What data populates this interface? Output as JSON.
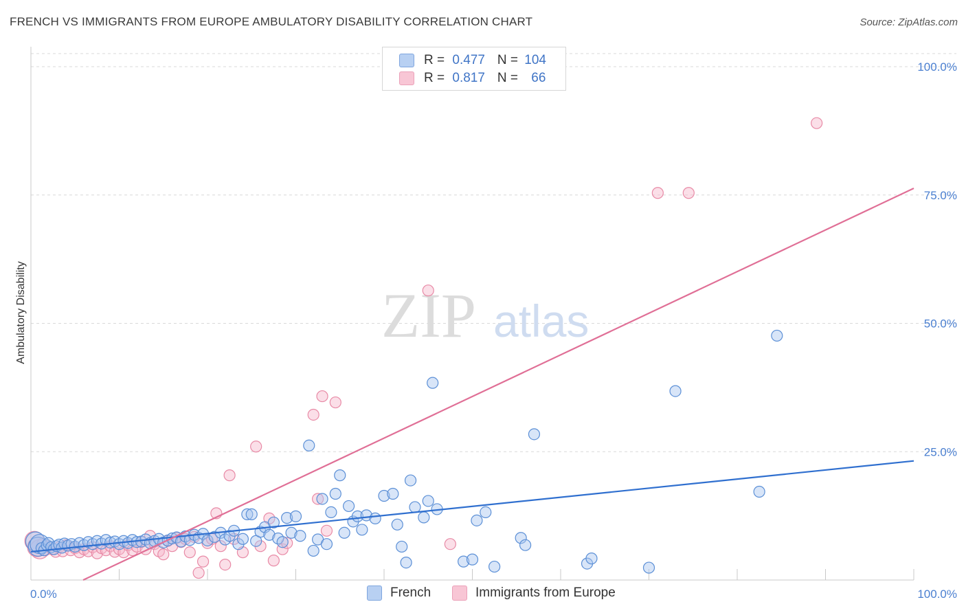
{
  "title": "FRENCH VS IMMIGRANTS FROM EUROPE AMBULATORY DISABILITY CORRELATION CHART",
  "source": "Source: ZipAtlas.com",
  "watermark": {
    "zip": "ZIP",
    "atlas": "atlas"
  },
  "colors": {
    "blue_fill": "#a9c6ef",
    "blue_stroke": "#5b8fd6",
    "blue_line": "#2f6fcf",
    "pink_fill": "#f6b9cb",
    "pink_stroke": "#e88aa6",
    "pink_line": "#e06f96",
    "tick_color": "#4a7fd0",
    "grid": "#d9d9d9"
  },
  "legend": {
    "rows": [
      {
        "r_label": "R = ",
        "r_value": "0.477",
        "n_label": "N = ",
        "n_value": "104"
      },
      {
        "r_label": "R = ",
        "r_value": "0.817",
        "n_label": "N = ",
        "n_value": "66"
      }
    ]
  },
  "bottom_legend": [
    "French",
    "Immigrants from Europe"
  ],
  "chart_data": {
    "type": "scatter",
    "ylabel": "Ambulatory Disability",
    "xlim": [
      0,
      100
    ],
    "ylim": [
      0,
      100
    ],
    "x_tick_labels": [
      "0.0%",
      "100.0%"
    ],
    "y_tick_values": [
      25,
      50,
      75,
      100
    ],
    "y_tick_labels": [
      "25.0%",
      "50.0%",
      "75.0%",
      "100.0%"
    ],
    "legend_position": "top-center",
    "grid": true,
    "series": [
      {
        "name": "French",
        "trend": {
          "x": [
            0,
            100
          ],
          "y": [
            5.5,
            23.2
          ]
        },
        "points": [
          [
            0.5,
            7.5
          ],
          [
            0.8,
            6.5
          ],
          [
            1.0,
            7.0
          ],
          [
            1.2,
            6.2
          ],
          [
            1.5,
            5.8
          ],
          [
            1.8,
            6.8
          ],
          [
            2.0,
            7.2
          ],
          [
            2.3,
            6.4
          ],
          [
            2.6,
            6.0
          ],
          [
            2.9,
            6.6
          ],
          [
            3.2,
            6.9
          ],
          [
            3.5,
            6.3
          ],
          [
            3.8,
            7.1
          ],
          [
            4.2,
            6.7
          ],
          [
            4.6,
            7.0
          ],
          [
            5.0,
            6.5
          ],
          [
            5.5,
            7.2
          ],
          [
            6.0,
            6.8
          ],
          [
            6.5,
            7.4
          ],
          [
            7.0,
            7.0
          ],
          [
            7.5,
            7.6
          ],
          [
            8.0,
            7.1
          ],
          [
            8.5,
            7.8
          ],
          [
            9.0,
            7.3
          ],
          [
            9.5,
            7.5
          ],
          [
            10.0,
            7.0
          ],
          [
            10.5,
            7.6
          ],
          [
            11.0,
            7.2
          ],
          [
            11.5,
            7.8
          ],
          [
            12.0,
            7.4
          ],
          [
            12.5,
            7.5
          ],
          [
            13.0,
            7.9
          ],
          [
            13.5,
            7.2
          ],
          [
            14.0,
            7.6
          ],
          [
            14.5,
            8.0
          ],
          [
            15.0,
            7.3
          ],
          [
            15.5,
            7.7
          ],
          [
            16.0,
            8.1
          ],
          [
            16.5,
            8.3
          ],
          [
            17.0,
            7.5
          ],
          [
            17.5,
            8.5
          ],
          [
            18.0,
            7.8
          ],
          [
            18.5,
            8.8
          ],
          [
            19.0,
            8.2
          ],
          [
            19.5,
            9.0
          ],
          [
            20.0,
            7.7
          ],
          [
            20.8,
            8.4
          ],
          [
            21.5,
            9.2
          ],
          [
            22.0,
            7.9
          ],
          [
            22.5,
            8.6
          ],
          [
            23.0,
            9.6
          ],
          [
            23.5,
            7.0
          ],
          [
            24.0,
            8.0
          ],
          [
            24.5,
            12.8
          ],
          [
            25.0,
            12.8
          ],
          [
            25.5,
            7.6
          ],
          [
            26.0,
            9.4
          ],
          [
            26.5,
            10.3
          ],
          [
            27.0,
            8.8
          ],
          [
            27.5,
            11.2
          ],
          [
            28.0,
            8.1
          ],
          [
            28.5,
            7.4
          ],
          [
            29.0,
            12.1
          ],
          [
            29.5,
            9.2
          ],
          [
            30.0,
            12.4
          ],
          [
            30.5,
            8.6
          ],
          [
            31.5,
            26.2
          ],
          [
            32.0,
            5.7
          ],
          [
            32.5,
            7.9
          ],
          [
            33.0,
            15.8
          ],
          [
            33.5,
            7.0
          ],
          [
            34.0,
            13.2
          ],
          [
            34.5,
            16.8
          ],
          [
            35.0,
            20.4
          ],
          [
            35.5,
            9.2
          ],
          [
            36.0,
            14.4
          ],
          [
            36.5,
            11.4
          ],
          [
            37.0,
            12.4
          ],
          [
            37.5,
            9.8
          ],
          [
            38.0,
            12.6
          ],
          [
            39.0,
            12.0
          ],
          [
            40.0,
            16.4
          ],
          [
            41.0,
            16.8
          ],
          [
            41.5,
            10.8
          ],
          [
            42.0,
            6.5
          ],
          [
            42.5,
            3.4
          ],
          [
            43.0,
            19.4
          ],
          [
            43.5,
            14.2
          ],
          [
            44.5,
            12.2
          ],
          [
            45.0,
            15.4
          ],
          [
            45.5,
            38.4
          ],
          [
            46.0,
            13.8
          ],
          [
            49.0,
            3.6
          ],
          [
            50.0,
            4.0
          ],
          [
            50.5,
            11.6
          ],
          [
            51.5,
            13.2
          ],
          [
            52.5,
            2.6
          ],
          [
            55.5,
            8.2
          ],
          [
            56.0,
            6.8
          ],
          [
            57.0,
            28.4
          ],
          [
            63.0,
            3.2
          ],
          [
            63.5,
            4.2
          ],
          [
            70.0,
            2.4
          ],
          [
            73.0,
            36.8
          ],
          [
            82.5,
            17.2
          ],
          [
            84.5,
            47.6
          ]
        ]
      },
      {
        "name": "Immigrants from Europe",
        "trend": {
          "x": [
            0,
            100
          ],
          "y": [
            -4.8,
            76.3
          ]
        },
        "points": [
          [
            0.4,
            7.6
          ],
          [
            0.7,
            6.4
          ],
          [
            1.0,
            6.0
          ],
          [
            1.3,
            7.0
          ],
          [
            1.6,
            5.8
          ],
          [
            2.0,
            6.5
          ],
          [
            2.4,
            6.0
          ],
          [
            2.8,
            5.5
          ],
          [
            3.2,
            6.4
          ],
          [
            3.6,
            5.6
          ],
          [
            4.0,
            6.8
          ],
          [
            4.5,
            5.8
          ],
          [
            5.0,
            6.2
          ],
          [
            5.5,
            5.4
          ],
          [
            6.0,
            6.0
          ],
          [
            6.5,
            5.6
          ],
          [
            7.0,
            6.4
          ],
          [
            7.5,
            5.2
          ],
          [
            8.0,
            6.2
          ],
          [
            8.5,
            5.8
          ],
          [
            9.0,
            6.6
          ],
          [
            9.5,
            5.5
          ],
          [
            10.0,
            6.0
          ],
          [
            10.5,
            5.4
          ],
          [
            11.0,
            6.8
          ],
          [
            11.5,
            5.8
          ],
          [
            12.0,
            6.5
          ],
          [
            12.5,
            7.4
          ],
          [
            13.0,
            6.0
          ],
          [
            13.5,
            8.6
          ],
          [
            14.0,
            7.0
          ],
          [
            14.5,
            5.6
          ],
          [
            15.0,
            5.0
          ],
          [
            15.5,
            7.6
          ],
          [
            16.0,
            6.6
          ],
          [
            16.5,
            8.2
          ],
          [
            17.0,
            7.4
          ],
          [
            17.5,
            8.0
          ],
          [
            18.0,
            5.4
          ],
          [
            18.5,
            8.4
          ],
          [
            19.0,
            1.4
          ],
          [
            19.5,
            3.6
          ],
          [
            20.0,
            7.2
          ],
          [
            20.5,
            8.0
          ],
          [
            21.0,
            13.0
          ],
          [
            21.5,
            6.6
          ],
          [
            22.0,
            3.0
          ],
          [
            22.5,
            20.4
          ],
          [
            23.0,
            8.0
          ],
          [
            24.0,
            5.4
          ],
          [
            25.5,
            26.0
          ],
          [
            26.0,
            6.6
          ],
          [
            27.0,
            12.0
          ],
          [
            27.5,
            3.8
          ],
          [
            28.5,
            6.0
          ],
          [
            29.0,
            7.2
          ],
          [
            32.0,
            32.2
          ],
          [
            32.5,
            15.8
          ],
          [
            33.0,
            35.8
          ],
          [
            33.5,
            9.6
          ],
          [
            34.5,
            34.6
          ],
          [
            45.0,
            56.4
          ],
          [
            47.5,
            7.0
          ],
          [
            71.0,
            75.4
          ],
          [
            74.5,
            75.4
          ],
          [
            89.0,
            89.0
          ]
        ]
      }
    ]
  }
}
